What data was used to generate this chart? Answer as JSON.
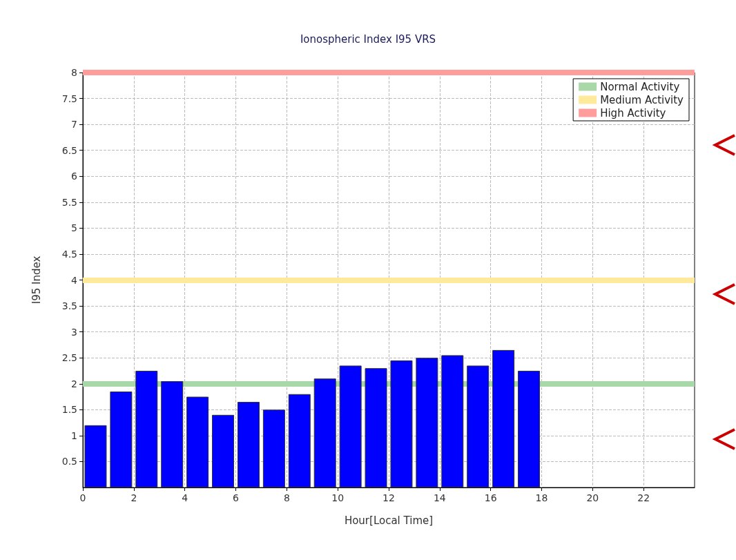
{
  "chart_data": {
    "type": "bar",
    "title": "Ionospheric Index I95 VRS",
    "xlabel": "Hour[Local Time]",
    "ylabel": "I95 Index",
    "x": [
      0.5,
      1.5,
      2.5,
      3.5,
      4.5,
      5.5,
      6.5,
      7.5,
      8.5,
      9.5,
      10.5,
      11.5,
      12.5,
      13.5,
      14.5,
      15.5,
      16.5,
      17.5
    ],
    "values": [
      1.2,
      1.85,
      2.25,
      2.05,
      1.75,
      1.4,
      1.65,
      1.5,
      1.8,
      2.1,
      2.35,
      2.3,
      2.45,
      2.5,
      2.55,
      2.35,
      2.65,
      2.25
    ],
    "color": "#0000ff",
    "xlim": [
      0,
      24
    ],
    "xticks": [
      0,
      2,
      4,
      6,
      8,
      10,
      12,
      14,
      16,
      18,
      20,
      22
    ],
    "ylim": [
      0,
      8
    ],
    "yticks": [
      0.5,
      1,
      1.5,
      2,
      2.5,
      3,
      3.5,
      4,
      4.5,
      5,
      5.5,
      6,
      6.5,
      7,
      7.5,
      8
    ],
    "ref_lines": [
      {
        "axis": "y",
        "value": 2,
        "label": "Normal Activity",
        "color": "#a8d8a8"
      },
      {
        "axis": "y",
        "value": 4,
        "label": "Medium Activity",
        "color": "#ffe99a"
      },
      {
        "axis": "y",
        "value": 8,
        "label": "High Activity",
        "color": "#ff9c9c"
      }
    ],
    "grid": true,
    "legend": "top right"
  }
}
